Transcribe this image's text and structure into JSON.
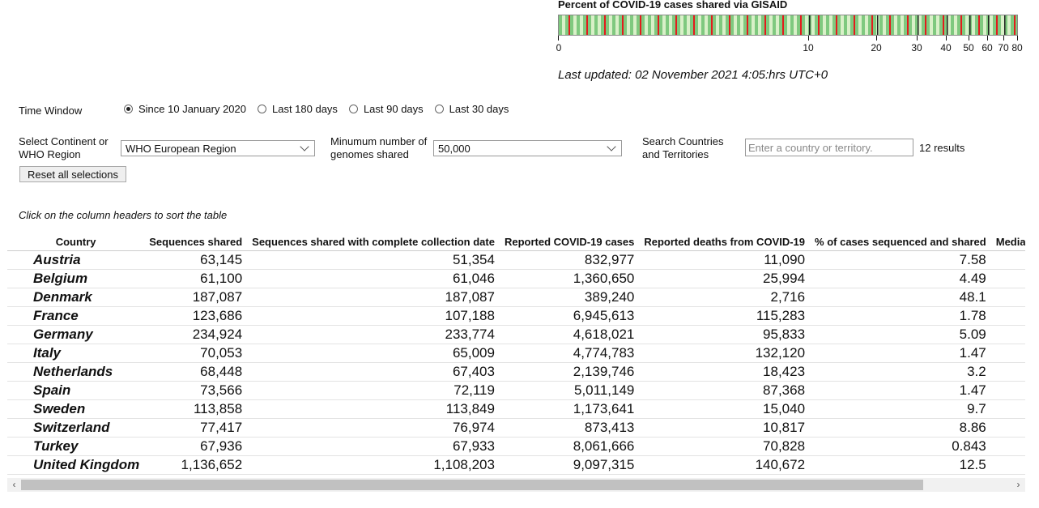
{
  "legend": {
    "title": "Percent of COVID-19 cases shared via GISAID",
    "ticks": [
      "0",
      "10",
      "20",
      "30",
      "40",
      "50",
      "60",
      "70",
      "80"
    ],
    "colors": {
      "green": "#7fc97f",
      "red": "#e41a1c",
      "light": "#d9f0c8"
    }
  },
  "last_updated": "Last updated: 02 November 2021 4:05:hrs UTC+0",
  "time_window": {
    "label": "Time Window",
    "options": [
      "Since 10 January 2020",
      "Last 180 days",
      "Last 90 days",
      "Last 30 days"
    ],
    "selected": "Since 10 January 2020"
  },
  "region": {
    "label_line1": "Select Continent or",
    "label_line2": "WHO Region",
    "value": "WHO European Region"
  },
  "min_genomes": {
    "label_line1": "Minumum number of",
    "label_line2": "genomes shared",
    "value": "50,000"
  },
  "search": {
    "label_line1": "Search Countries",
    "label_line2": "and Territories",
    "placeholder": "Enter a country or territory.",
    "result_count": "12 results"
  },
  "reset_label": "Reset all selections",
  "sort_hint": "Click on the column headers to sort the table",
  "table": {
    "headers": [
      "Country",
      "Sequences shared",
      "Sequences shared with complete collection date",
      "Reported COVID-19 cases",
      "Reported deaths from COVID-19",
      "% of cases sequenced and shared",
      "Median da"
    ],
    "rows": [
      [
        "Austria",
        "63,145",
        "51,354",
        "832,977",
        "11,090",
        "7.58",
        ""
      ],
      [
        "Belgium",
        "61,100",
        "61,046",
        "1,360,650",
        "25,994",
        "4.49",
        ""
      ],
      [
        "Denmark",
        "187,087",
        "187,087",
        "389,240",
        "2,716",
        "48.1",
        ""
      ],
      [
        "France",
        "123,686",
        "107,188",
        "6,945,613",
        "115,283",
        "1.78",
        ""
      ],
      [
        "Germany",
        "234,924",
        "233,774",
        "4,618,021",
        "95,833",
        "5.09",
        ""
      ],
      [
        "Italy",
        "70,053",
        "65,009",
        "4,774,783",
        "132,120",
        "1.47",
        ""
      ],
      [
        "Netherlands",
        "68,448",
        "67,403",
        "2,139,746",
        "18,423",
        "3.2",
        ""
      ],
      [
        "Spain",
        "73,566",
        "72,119",
        "5,011,149",
        "87,368",
        "1.47",
        ""
      ],
      [
        "Sweden",
        "113,858",
        "113,849",
        "1,173,641",
        "15,040",
        "9.7",
        ""
      ],
      [
        "Switzerland",
        "77,417",
        "76,974",
        "873,413",
        "10,817",
        "8.86",
        ""
      ],
      [
        "Turkey",
        "67,936",
        "67,933",
        "8,061,666",
        "70,828",
        "0.843",
        ""
      ],
      [
        "United Kingdom",
        "1,136,652",
        "1,108,203",
        "9,097,315",
        "140,672",
        "12.5",
        ""
      ]
    ]
  },
  "icons": {
    "scroll_left": "chevron-left-icon",
    "scroll_right": "chevron-right-icon",
    "dropdown": "chevron-down-icon"
  }
}
